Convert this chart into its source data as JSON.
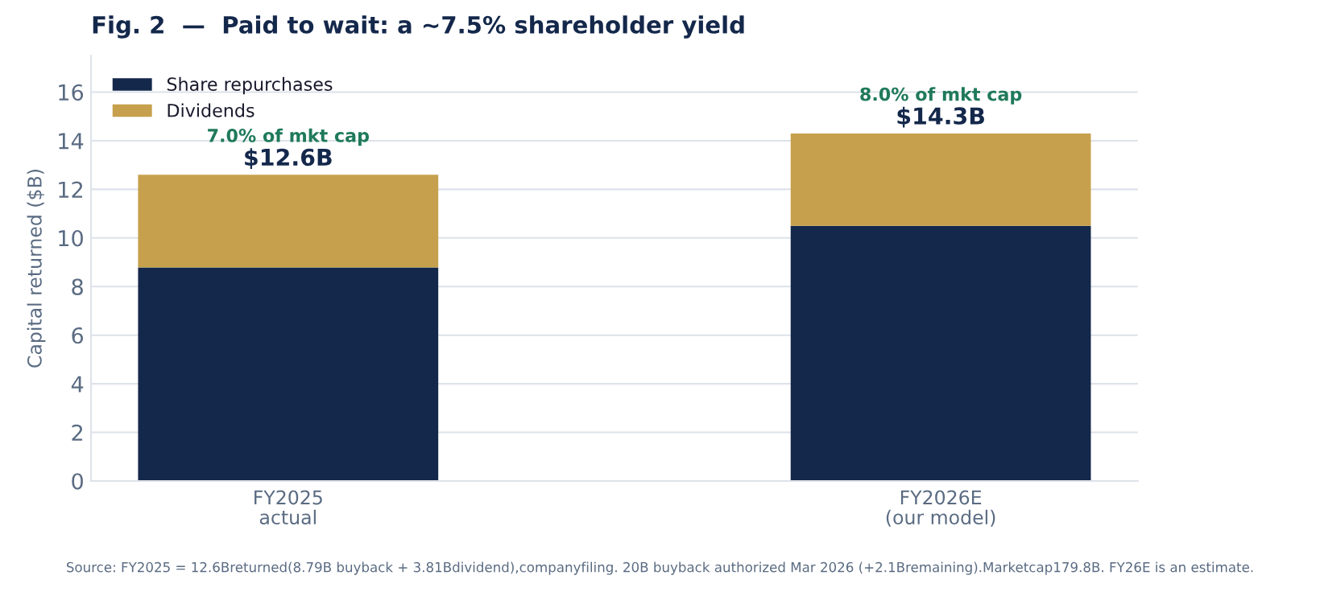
{
  "chart_data": {
    "type": "bar",
    "title": "Fig. 2  —  Paid to wait: a ~7.5% shareholder yield",
    "ylabel": "Capital returned ($B)",
    "categories": [
      "FY2025\nactual",
      "FY2026E\n(our model)"
    ],
    "stacked": true,
    "series": [
      {
        "name": "Share repurchases",
        "color": "#14284b",
        "values": [
          8.79,
          10.5
        ]
      },
      {
        "name": "Dividends",
        "color": "#c6a04c",
        "values": [
          3.81,
          3.8
        ]
      }
    ],
    "ylim": [
      0,
      17.5
    ],
    "yticks": [
      0,
      2,
      4,
      6,
      8,
      10,
      12,
      14,
      16
    ],
    "grid": "y",
    "legend": "top left",
    "totals": [
      "$12.6B",
      "$14.3B"
    ],
    "annotations": [
      {
        "text": "7.0% of mkt cap",
        "x": "FY2025\nactual",
        "y": 12.6
      },
      {
        "text": "8.0% of mkt cap",
        "x": "FY2026E\n(our model)",
        "y": 14.3
      },
      "Source: FY2025 = 12.6Breturned(8.79B buyback + 3.81Bdividend),companyfiling. 20B buyback authorized Mar 2026 (+2.1Bremaining).Marketcap179.8B. FY26E is an estimate."
    ]
  }
}
